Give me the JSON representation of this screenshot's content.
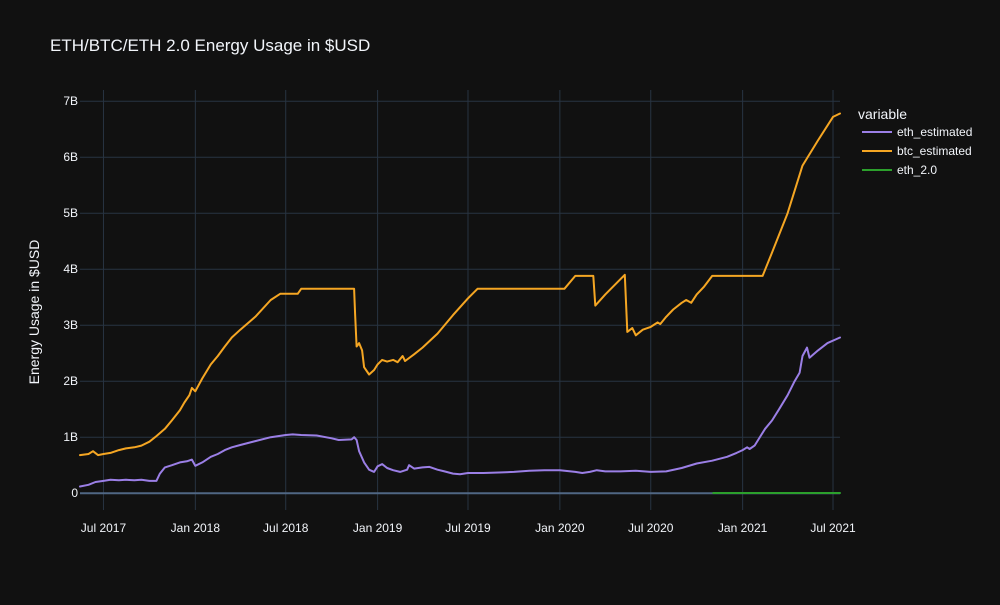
{
  "chart_data": {
    "type": "line",
    "title": "ETH/BTC/ETH 2.0 Energy Usage in $USD",
    "xlabel": "",
    "ylabel": "Energy Usage in $USD",
    "legend_title": "variable",
    "legend_position": "right",
    "grid": true,
    "xlim": [
      "2017-05-15",
      "2021-07-15"
    ],
    "ylim": [
      -0.3,
      7.2
    ],
    "y_unit": "billion USD",
    "x_ticks": [
      {
        "date": "2017-07-01",
        "label": "Jul 2017"
      },
      {
        "date": "2018-01-01",
        "label": "Jan 2018"
      },
      {
        "date": "2018-07-01",
        "label": "Jul 2018"
      },
      {
        "date": "2019-01-01",
        "label": "Jan 2019"
      },
      {
        "date": "2019-07-01",
        "label": "Jul 2019"
      },
      {
        "date": "2020-01-01",
        "label": "Jan 2020"
      },
      {
        "date": "2020-07-01",
        "label": "Jul 2020"
      },
      {
        "date": "2021-01-01",
        "label": "Jan 2021"
      },
      {
        "date": "2021-07-01",
        "label": "Jul 2021"
      }
    ],
    "y_ticks": [
      {
        "value": 0,
        "label": "0"
      },
      {
        "value": 1,
        "label": "1B"
      },
      {
        "value": 2,
        "label": "2B"
      },
      {
        "value": 3,
        "label": "3B"
      },
      {
        "value": 4,
        "label": "4B"
      },
      {
        "value": 5,
        "label": "5B"
      },
      {
        "value": 6,
        "label": "6B"
      },
      {
        "value": 7,
        "label": "7B"
      }
    ],
    "series": [
      {
        "name": "eth_estimated",
        "color": "#9b7fe6",
        "points": [
          [
            "2017-05-15",
            0.12
          ],
          [
            "2017-06-01",
            0.15
          ],
          [
            "2017-06-15",
            0.2
          ],
          [
            "2017-07-01",
            0.22
          ],
          [
            "2017-07-15",
            0.24
          ],
          [
            "2017-08-01",
            0.23
          ],
          [
            "2017-08-15",
            0.24
          ],
          [
            "2017-09-01",
            0.23
          ],
          [
            "2017-09-15",
            0.24
          ],
          [
            "2017-10-01",
            0.22
          ],
          [
            "2017-10-15",
            0.22
          ],
          [
            "2017-10-22",
            0.35
          ],
          [
            "2017-11-01",
            0.46
          ],
          [
            "2017-11-15",
            0.5
          ],
          [
            "2017-12-01",
            0.55
          ],
          [
            "2017-12-15",
            0.57
          ],
          [
            "2017-12-25",
            0.6
          ],
          [
            "2018-01-01",
            0.49
          ],
          [
            "2018-01-15",
            0.55
          ],
          [
            "2018-02-01",
            0.65
          ],
          [
            "2018-02-15",
            0.7
          ],
          [
            "2018-03-01",
            0.77
          ],
          [
            "2018-03-15",
            0.82
          ],
          [
            "2018-04-01",
            0.86
          ],
          [
            "2018-05-01",
            0.93
          ],
          [
            "2018-06-01",
            1.0
          ],
          [
            "2018-07-01",
            1.04
          ],
          [
            "2018-07-15",
            1.05
          ],
          [
            "2018-08-01",
            1.04
          ],
          [
            "2018-09-01",
            1.03
          ],
          [
            "2018-10-01",
            0.98
          ],
          [
            "2018-10-15",
            0.95
          ],
          [
            "2018-11-10",
            0.96
          ],
          [
            "2018-11-15",
            1.0
          ],
          [
            "2018-11-20",
            0.95
          ],
          [
            "2018-11-25",
            0.75
          ],
          [
            "2018-12-05",
            0.55
          ],
          [
            "2018-12-15",
            0.42
          ],
          [
            "2018-12-25",
            0.38
          ],
          [
            "2019-01-01",
            0.48
          ],
          [
            "2019-01-10",
            0.52
          ],
          [
            "2019-01-20",
            0.45
          ],
          [
            "2019-02-01",
            0.41
          ],
          [
            "2019-02-15",
            0.38
          ],
          [
            "2019-03-01",
            0.42
          ],
          [
            "2019-03-05",
            0.5
          ],
          [
            "2019-03-15",
            0.44
          ],
          [
            "2019-04-01",
            0.46
          ],
          [
            "2019-04-15",
            0.47
          ],
          [
            "2019-05-01",
            0.42
          ],
          [
            "2019-05-15",
            0.39
          ],
          [
            "2019-06-01",
            0.35
          ],
          [
            "2019-06-15",
            0.34
          ],
          [
            "2019-07-01",
            0.36
          ],
          [
            "2019-08-01",
            0.36
          ],
          [
            "2019-09-01",
            0.37
          ],
          [
            "2019-10-01",
            0.38
          ],
          [
            "2019-11-01",
            0.4
          ],
          [
            "2019-12-01",
            0.41
          ],
          [
            "2020-01-01",
            0.41
          ],
          [
            "2020-02-01",
            0.38
          ],
          [
            "2020-02-15",
            0.36
          ],
          [
            "2020-03-01",
            0.38
          ],
          [
            "2020-03-15",
            0.41
          ],
          [
            "2020-04-01",
            0.39
          ],
          [
            "2020-05-01",
            0.39
          ],
          [
            "2020-06-01",
            0.4
          ],
          [
            "2020-07-01",
            0.38
          ],
          [
            "2020-08-01",
            0.39
          ],
          [
            "2020-09-01",
            0.45
          ],
          [
            "2020-10-01",
            0.53
          ],
          [
            "2020-11-01",
            0.58
          ],
          [
            "2020-12-01",
            0.65
          ],
          [
            "2020-12-20",
            0.72
          ],
          [
            "2021-01-01",
            0.77
          ],
          [
            "2021-01-10",
            0.82
          ],
          [
            "2021-01-15",
            0.79
          ],
          [
            "2021-01-25",
            0.85
          ],
          [
            "2021-02-01",
            0.95
          ],
          [
            "2021-02-15",
            1.15
          ],
          [
            "2021-03-01",
            1.3
          ],
          [
            "2021-03-15",
            1.5
          ],
          [
            "2021-04-01",
            1.75
          ],
          [
            "2021-04-15",
            2.0
          ],
          [
            "2021-04-25",
            2.15
          ],
          [
            "2021-05-01",
            2.45
          ],
          [
            "2021-05-10",
            2.6
          ],
          [
            "2021-05-15",
            2.42
          ],
          [
            "2021-06-01",
            2.55
          ],
          [
            "2021-06-20",
            2.68
          ],
          [
            "2021-07-15",
            2.78
          ]
        ]
      },
      {
        "name": "btc_estimated",
        "color": "#f5a623",
        "points": [
          [
            "2017-05-15",
            0.68
          ],
          [
            "2017-06-01",
            0.7
          ],
          [
            "2017-06-10",
            0.75
          ],
          [
            "2017-06-20",
            0.68
          ],
          [
            "2017-07-01",
            0.7
          ],
          [
            "2017-07-15",
            0.72
          ],
          [
            "2017-08-01",
            0.77
          ],
          [
            "2017-08-15",
            0.8
          ],
          [
            "2017-09-01",
            0.82
          ],
          [
            "2017-09-15",
            0.85
          ],
          [
            "2017-10-01",
            0.92
          ],
          [
            "2017-10-15",
            1.02
          ],
          [
            "2017-11-01",
            1.15
          ],
          [
            "2017-11-15",
            1.3
          ],
          [
            "2017-12-01",
            1.48
          ],
          [
            "2017-12-10",
            1.62
          ],
          [
            "2017-12-20",
            1.75
          ],
          [
            "2017-12-25",
            1.88
          ],
          [
            "2018-01-01",
            1.82
          ],
          [
            "2018-01-15",
            2.05
          ],
          [
            "2018-02-01",
            2.3
          ],
          [
            "2018-02-15",
            2.45
          ],
          [
            "2018-03-01",
            2.62
          ],
          [
            "2018-03-15",
            2.78
          ],
          [
            "2018-04-01",
            2.92
          ],
          [
            "2018-05-01",
            3.15
          ],
          [
            "2018-06-01",
            3.45
          ],
          [
            "2018-06-20",
            3.56
          ],
          [
            "2018-07-01",
            3.56
          ],
          [
            "2018-07-25",
            3.56
          ],
          [
            "2018-08-01",
            3.65
          ],
          [
            "2018-09-01",
            3.65
          ],
          [
            "2018-10-01",
            3.65
          ],
          [
            "2018-11-15",
            3.65
          ],
          [
            "2018-11-17",
            3.2
          ],
          [
            "2018-11-20",
            2.62
          ],
          [
            "2018-11-25",
            2.68
          ],
          [
            "2018-12-01",
            2.55
          ],
          [
            "2018-12-05",
            2.25
          ],
          [
            "2018-12-15",
            2.12
          ],
          [
            "2018-12-25",
            2.2
          ],
          [
            "2019-01-01",
            2.3
          ],
          [
            "2019-01-10",
            2.38
          ],
          [
            "2019-01-20",
            2.35
          ],
          [
            "2019-02-01",
            2.38
          ],
          [
            "2019-02-10",
            2.34
          ],
          [
            "2019-02-20",
            2.45
          ],
          [
            "2019-02-25",
            2.36
          ],
          [
            "2019-03-15",
            2.48
          ],
          [
            "2019-04-01",
            2.6
          ],
          [
            "2019-05-01",
            2.85
          ],
          [
            "2019-06-01",
            3.18
          ],
          [
            "2019-07-01",
            3.48
          ],
          [
            "2019-07-20",
            3.65
          ],
          [
            "2019-08-01",
            3.65
          ],
          [
            "2019-09-01",
            3.65
          ],
          [
            "2019-10-01",
            3.65
          ],
          [
            "2019-11-01",
            3.65
          ],
          [
            "2019-12-01",
            3.65
          ],
          [
            "2020-01-01",
            3.65
          ],
          [
            "2020-01-10",
            3.65
          ],
          [
            "2020-02-01",
            3.88
          ],
          [
            "2020-03-01",
            3.88
          ],
          [
            "2020-03-08",
            3.88
          ],
          [
            "2020-03-12",
            3.35
          ],
          [
            "2020-04-01",
            3.55
          ],
          [
            "2020-05-01",
            3.82
          ],
          [
            "2020-05-10",
            3.9
          ],
          [
            "2020-05-15",
            2.88
          ],
          [
            "2020-05-25",
            2.95
          ],
          [
            "2020-06-01",
            2.82
          ],
          [
            "2020-06-15",
            2.92
          ],
          [
            "2020-07-01",
            2.97
          ],
          [
            "2020-07-15",
            3.05
          ],
          [
            "2020-07-20",
            3.02
          ],
          [
            "2020-08-01",
            3.15
          ],
          [
            "2020-08-15",
            3.28
          ],
          [
            "2020-09-01",
            3.4
          ],
          [
            "2020-09-10",
            3.45
          ],
          [
            "2020-09-20",
            3.4
          ],
          [
            "2020-10-01",
            3.55
          ],
          [
            "2020-10-15",
            3.68
          ],
          [
            "2020-11-01",
            3.88
          ],
          [
            "2020-12-01",
            3.88
          ],
          [
            "2021-01-01",
            3.88
          ],
          [
            "2021-02-01",
            3.88
          ],
          [
            "2021-02-10",
            3.88
          ],
          [
            "2021-03-01",
            4.3
          ],
          [
            "2021-04-01",
            5.0
          ],
          [
            "2021-05-01",
            5.85
          ],
          [
            "2021-06-01",
            6.3
          ],
          [
            "2021-07-01",
            6.72
          ],
          [
            "2021-07-15",
            6.78
          ]
        ]
      },
      {
        "name": "eth_2.0",
        "color": "#2ca02c",
        "points": [
          [
            "2020-11-03",
            0.003
          ],
          [
            "2021-07-15",
            0.003
          ]
        ]
      }
    ]
  }
}
